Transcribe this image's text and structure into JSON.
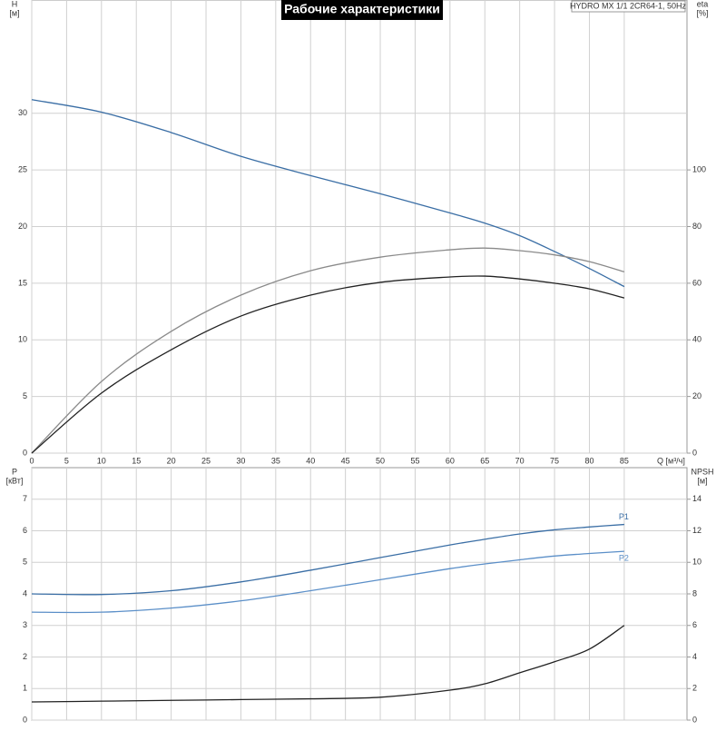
{
  "chart_data": [
    {
      "type": "line",
      "title": "Рабочие характеристики",
      "subtitle": "HYDRO MX 1/1 2CR64-1, 50Hz",
      "x_label": "Q [м³/ч]",
      "y_label": [
        "H",
        "[м]"
      ],
      "y2_label": [
        "eta",
        "[%]"
      ],
      "x": [
        0,
        10,
        20,
        30,
        40,
        50,
        60,
        65,
        70,
        75,
        80,
        85
      ],
      "xlim": [
        0,
        94
      ],
      "xticks": [
        0,
        5,
        10,
        15,
        20,
        25,
        30,
        35,
        40,
        45,
        50,
        55,
        60,
        65,
        70,
        75,
        80,
        85
      ],
      "ylim": [
        0,
        40
      ],
      "yticks": [
        0,
        5,
        10,
        15,
        20,
        25,
        30
      ],
      "y2lim": [
        0,
        160
      ],
      "y2ticks": [
        0,
        20,
        40,
        60,
        80,
        100
      ],
      "grid": true,
      "series": [
        {
          "color": "#3a6ea5",
          "values": [
            31.2,
            30.1,
            28.3,
            26.2,
            24.5,
            22.9,
            21.2,
            20.3,
            19.2,
            17.8,
            16.3,
            14.7
          ]
        },
        {
          "color": "#8a8a8a",
          "axis": "y2",
          "values": [
            0,
            25.3,
            43,
            55.8,
            64.4,
            69.2,
            71.8,
            72.4,
            71.5,
            70,
            67.6,
            64
          ]
        },
        {
          "color": "#222222",
          "axis": "y2",
          "values": [
            0,
            21.2,
            36.5,
            48.4,
            55.8,
            60.3,
            62.2,
            62.5,
            61.5,
            60,
            58,
            54.8
          ]
        }
      ]
    },
    {
      "type": "line",
      "y_label": [
        "P",
        "[кВт]"
      ],
      "y2_label": [
        "NPSH",
        "[м]"
      ],
      "x": [
        0,
        10,
        20,
        30,
        40,
        50,
        60,
        65,
        70,
        75,
        80,
        85
      ],
      "xlim": [
        0,
        94
      ],
      "xticks": [
        0,
        5,
        10,
        15,
        20,
        25,
        30,
        35,
        40,
        45,
        50,
        55,
        60,
        65,
        70,
        75,
        80,
        85
      ],
      "ylim": [
        0,
        8
      ],
      "yticks": [
        0,
        1,
        2,
        3,
        4,
        5,
        6,
        7
      ],
      "y2lim": [
        0,
        16
      ],
      "y2ticks": [
        0,
        2,
        4,
        6,
        8,
        10,
        12,
        14
      ],
      "grid": true,
      "series": [
        {
          "name": "P1",
          "color": "#3a6ea5",
          "values": [
            4.0,
            3.98,
            4.1,
            4.38,
            4.75,
            5.15,
            5.55,
            5.73,
            5.9,
            6.03,
            6.12,
            6.2
          ]
        },
        {
          "name": "P2",
          "color": "#5b8fc8",
          "values": [
            3.42,
            3.42,
            3.55,
            3.78,
            4.1,
            4.45,
            4.8,
            4.95,
            5.08,
            5.2,
            5.28,
            5.35
          ]
        },
        {
          "color": "#222222",
          "axis": "y2",
          "values": [
            1.15,
            1.2,
            1.25,
            1.3,
            1.35,
            1.45,
            1.9,
            2.3,
            3.0,
            3.7,
            4.5,
            6.0
          ]
        }
      ]
    }
  ]
}
